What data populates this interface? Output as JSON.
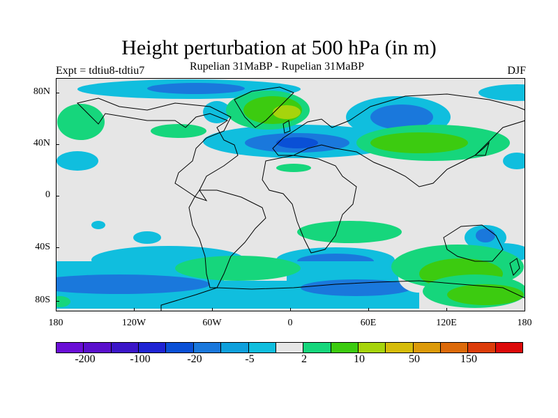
{
  "title": "Height perturbation at 500 hPa (in m)",
  "subtitle_left": "Expt = tdtiu8-tdtiu7",
  "subtitle_center": "Rupelian  31MaBP - Rupelian  31MaBP",
  "subtitle_right": "DJF",
  "y_labels": [
    "80N",
    "40N",
    "0",
    "40S",
    "80S"
  ],
  "x_labels": [
    "180",
    "120W",
    "60W",
    "0",
    "60E",
    "120E",
    "180"
  ],
  "colorbar": {
    "colors": [
      "#6a0fd6",
      "#5a10cc",
      "#3b16c8",
      "#1f24d4",
      "#0a50d6",
      "#1a78dc",
      "#0fa0dc",
      "#10bede",
      "#e6e6e6",
      "#16d67c",
      "#3ccb10",
      "#a6d40c",
      "#d6bc0a",
      "#dc9a0a",
      "#dc6a0a",
      "#dc3c0a",
      "#dc0a0a"
    ],
    "labels": [
      "-200",
      "-100",
      "-20",
      "-5",
      "2",
      "10",
      "50",
      "150"
    ]
  }
}
